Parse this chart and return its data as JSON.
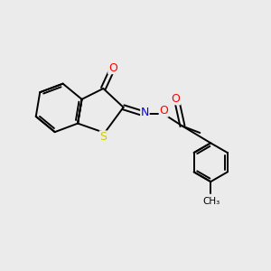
{
  "background_color": "#ebebeb",
  "bond_color": "#000000",
  "atom_colors": {
    "O": "#ff0000",
    "N": "#0000ff",
    "S": "#cccc00",
    "C": "#000000"
  },
  "figsize": [
    3.0,
    3.0
  ],
  "dpi": 100
}
